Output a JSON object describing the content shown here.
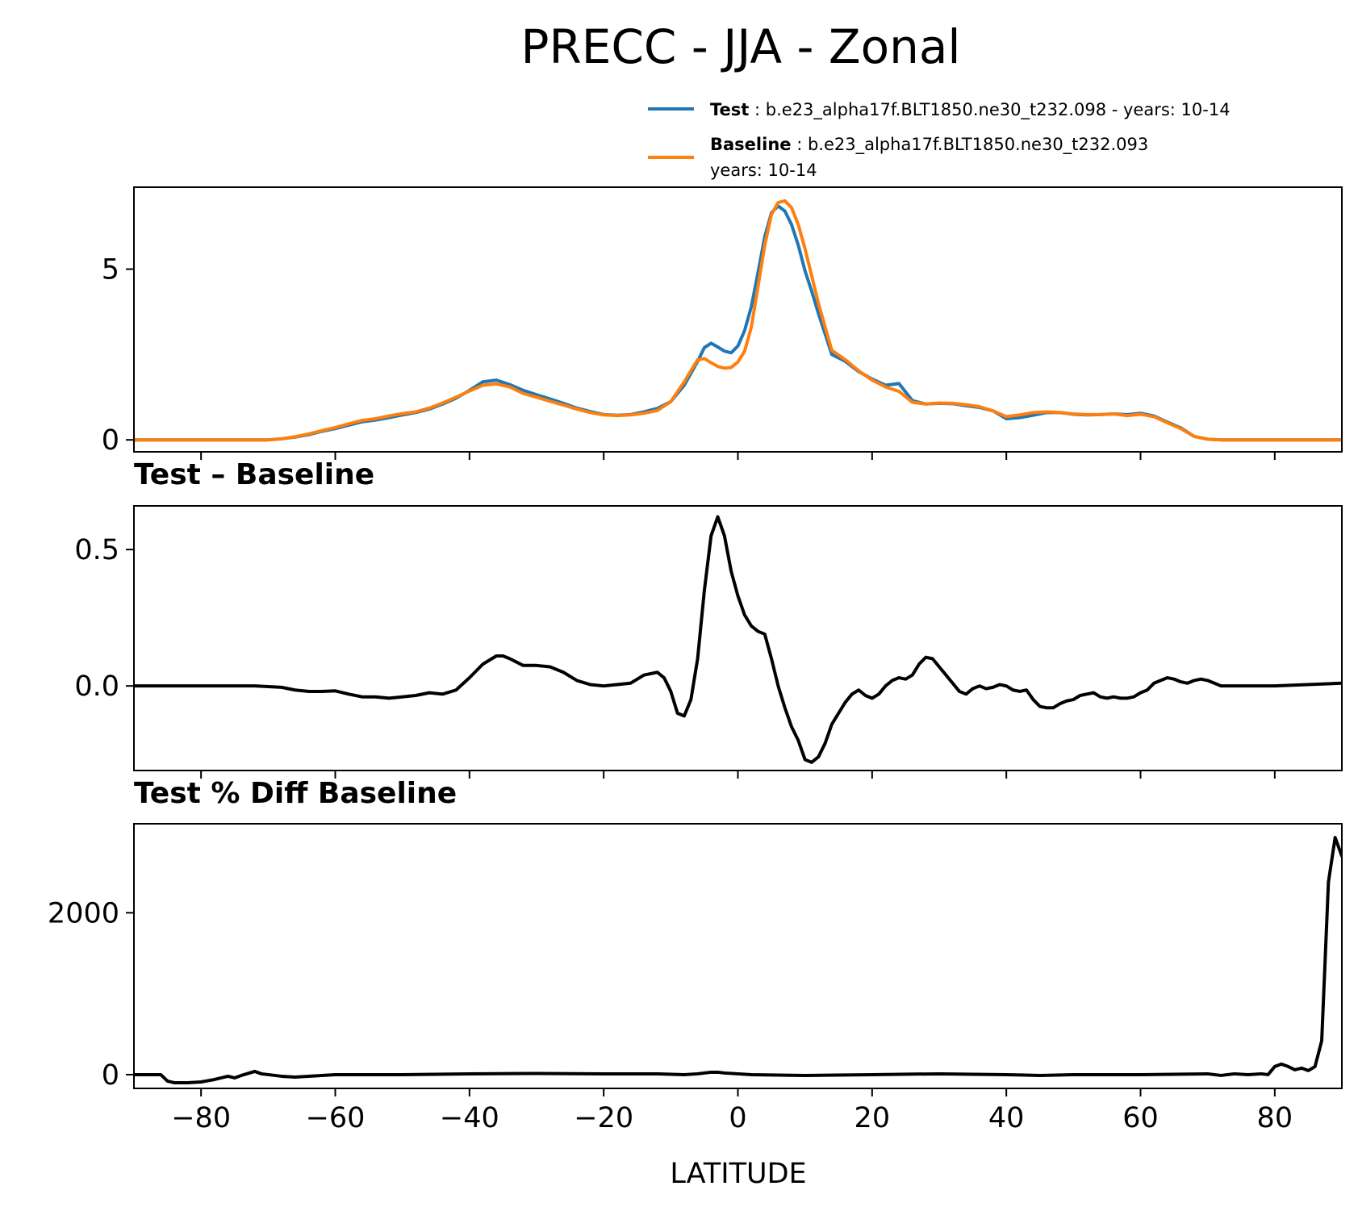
{
  "chart_data": {
    "type": "line",
    "title": "PRECC - JJA - Zonal",
    "xlabel": "LATITUDE",
    "xlim": [
      -90,
      90
    ],
    "x_ticks": [
      -80,
      -60,
      -40,
      -20,
      0,
      20,
      40,
      60,
      80
    ],
    "x_tick_labels": [
      "−80",
      "−60",
      "−40",
      "−20",
      "0",
      "20",
      "40",
      "60",
      "80"
    ],
    "legend": {
      "placement": "top-right, above panels",
      "entries": [
        {
          "name": "Test",
          "sep": " : ",
          "text": "b.e23_alpha17f.BLT1850.ne30_t232.098 - years: 10-14",
          "text2": "",
          "color": "#1f77b4"
        },
        {
          "name": "Baseline",
          "sep": " : ",
          "text": "b.e23_alpha17f.BLT1850.ne30_t232.093",
          "text2": "years: 10-14",
          "color": "#ff7f0e"
        }
      ]
    },
    "panels": [
      {
        "subtitle": "",
        "ylim": [
          -0.35,
          7.4
        ],
        "y_ticks": [
          0,
          5
        ],
        "y_tick_labels": [
          "0",
          "5"
        ],
        "x_tick_labels_visible": false,
        "series": [
          {
            "name": "Test",
            "color": "#1f77b4",
            "x": [
              -90,
              -70,
              -68,
              -66,
              -64,
              -62,
              -60,
              -58,
              -56,
              -54,
              -52,
              -50,
              -48,
              -46,
              -44,
              -42,
              -40,
              -38,
              -36,
              -34,
              -32,
              -30,
              -28,
              -26,
              -24,
              -22,
              -20,
              -18,
              -16,
              -14,
              -12,
              -10,
              -8,
              -6,
              -5,
              -4,
              -3,
              -2,
              -1,
              0,
              1,
              2,
              3,
              4,
              5,
              6,
              7,
              8,
              9,
              10,
              11,
              12,
              13,
              14,
              16,
              18,
              20,
              22,
              24,
              26,
              28,
              30,
              32,
              34,
              36,
              38,
              40,
              42,
              44,
              46,
              48,
              50,
              52,
              54,
              56,
              58,
              60,
              62,
              64,
              66,
              68,
              70,
              72,
              74,
              76,
              90
            ],
            "y": [
              0.0,
              0.0,
              0.03,
              0.08,
              0.15,
              0.25,
              0.33,
              0.43,
              0.53,
              0.58,
              0.65,
              0.73,
              0.8,
              0.9,
              1.05,
              1.22,
              1.45,
              1.7,
              1.75,
              1.62,
              1.45,
              1.32,
              1.2,
              1.07,
              0.93,
              0.83,
              0.74,
              0.72,
              0.74,
              0.82,
              0.92,
              1.12,
              1.6,
              2.3,
              2.7,
              2.83,
              2.72,
              2.6,
              2.55,
              2.75,
              3.2,
              3.9,
              4.9,
              5.95,
              6.65,
              6.85,
              6.7,
              6.3,
              5.7,
              4.95,
              4.35,
              3.7,
              3.1,
              2.5,
              2.3,
              2.0,
              1.78,
              1.6,
              1.65,
              1.15,
              1.05,
              1.07,
              1.06,
              1.0,
              0.95,
              0.85,
              0.62,
              0.65,
              0.72,
              0.8,
              0.8,
              0.75,
              0.73,
              0.74,
              0.76,
              0.74,
              0.78,
              0.7,
              0.52,
              0.35,
              0.1,
              0.02,
              0.0,
              0.0,
              0.0,
              0.0
            ]
          },
          {
            "name": "Baseline",
            "color": "#ff7f0e",
            "x": [
              -90,
              -70,
              -68,
              -66,
              -64,
              -62,
              -60,
              -58,
              -56,
              -54,
              -52,
              -50,
              -48,
              -46,
              -44,
              -42,
              -40,
              -38,
              -36,
              -34,
              -32,
              -30,
              -28,
              -26,
              -24,
              -22,
              -20,
              -18,
              -16,
              -14,
              -12,
              -10,
              -8,
              -6,
              -5,
              -4,
              -3,
              -2,
              -1,
              0,
              1,
              2,
              3,
              4,
              5,
              6,
              7,
              8,
              9,
              10,
              11,
              12,
              13,
              14,
              16,
              18,
              20,
              22,
              24,
              26,
              28,
              30,
              32,
              34,
              36,
              38,
              40,
              42,
              44,
              46,
              48,
              50,
              52,
              54,
              56,
              58,
              60,
              62,
              64,
              66,
              68,
              70,
              72,
              74,
              76,
              90
            ],
            "y": [
              0.0,
              0.0,
              0.03,
              0.09,
              0.17,
              0.27,
              0.36,
              0.47,
              0.57,
              0.62,
              0.7,
              0.77,
              0.82,
              0.93,
              1.08,
              1.25,
              1.43,
              1.6,
              1.64,
              1.55,
              1.36,
              1.25,
              1.13,
              1.02,
              0.9,
              0.8,
              0.73,
              0.71,
              0.73,
              0.78,
              0.86,
              1.12,
              1.7,
              2.35,
              2.38,
              2.26,
              2.15,
              2.1,
              2.12,
              2.28,
              2.6,
              3.3,
              4.5,
              5.7,
              6.6,
              6.95,
              7.0,
              6.8,
              6.3,
              5.6,
              4.8,
              4.0,
              3.3,
              2.62,
              2.35,
              2.02,
              1.75,
              1.55,
              1.42,
              1.1,
              1.05,
              1.08,
              1.07,
              1.03,
              0.97,
              0.85,
              0.68,
              0.73,
              0.8,
              0.82,
              0.8,
              0.76,
              0.74,
              0.74,
              0.76,
              0.71,
              0.75,
              0.68,
              0.5,
              0.33,
              0.1,
              0.02,
              0.0,
              0.0,
              0.0,
              0.0
            ]
          }
        ]
      },
      {
        "subtitle": "Test – Baseline",
        "ylim": [
          -0.31,
          0.66
        ],
        "y_ticks": [
          0.0,
          0.5
        ],
        "y_tick_labels": [
          "0.0",
          "0.5"
        ],
        "x_tick_labels_visible": false,
        "series": [
          {
            "name": "Test – Baseline",
            "color": "#000000",
            "x": [
              -90,
              -72,
              -68,
              -66,
              -64,
              -62,
              -60,
              -58,
              -56,
              -54,
              -52,
              -50,
              -48,
              -46,
              -44,
              -42,
              -40,
              -38,
              -36,
              -35,
              -34,
              -32,
              -30,
              -28,
              -26,
              -24,
              -22,
              -20,
              -18,
              -16,
              -14,
              -12,
              -11,
              -10,
              -9,
              -8,
              -7,
              -6,
              -5,
              -4,
              -3,
              -2,
              -1,
              0,
              1,
              2,
              3,
              4,
              5,
              6,
              7,
              8,
              9,
              10,
              11,
              12,
              13,
              14,
              15,
              16,
              17,
              18,
              19,
              20,
              21,
              22,
              23,
              24,
              25,
              26,
              27,
              28,
              29,
              30,
              31,
              32,
              33,
              34,
              35,
              36,
              37,
              38,
              39,
              40,
              41,
              42,
              43,
              44,
              45,
              46,
              47,
              48,
              49,
              50,
              51,
              52,
              53,
              54,
              55,
              56,
              57,
              58,
              59,
              60,
              61,
              62,
              63,
              64,
              65,
              66,
              67,
              68,
              69,
              70,
              71,
              72,
              74,
              76,
              80,
              90
            ],
            "y": [
              0.0,
              0.0,
              -0.005,
              -0.015,
              -0.02,
              -0.02,
              -0.018,
              -0.03,
              -0.04,
              -0.04,
              -0.045,
              -0.04,
              -0.035,
              -0.025,
              -0.03,
              -0.015,
              0.03,
              0.08,
              0.11,
              0.11,
              0.1,
              0.075,
              0.075,
              0.07,
              0.05,
              0.02,
              0.005,
              0.0,
              0.005,
              0.01,
              0.04,
              0.05,
              0.03,
              -0.02,
              -0.1,
              -0.11,
              -0.05,
              0.1,
              0.35,
              0.55,
              0.62,
              0.55,
              0.42,
              0.33,
              0.26,
              0.22,
              0.2,
              0.19,
              0.1,
              0.0,
              -0.08,
              -0.15,
              -0.2,
              -0.27,
              -0.28,
              -0.26,
              -0.21,
              -0.14,
              -0.1,
              -0.06,
              -0.03,
              -0.015,
              -0.035,
              -0.045,
              -0.03,
              0.0,
              0.02,
              0.03,
              0.025,
              0.04,
              0.08,
              0.105,
              0.1,
              0.07,
              0.04,
              0.01,
              -0.02,
              -0.03,
              -0.01,
              0.0,
              -0.01,
              -0.005,
              0.005,
              0.0,
              -0.015,
              -0.02,
              -0.015,
              -0.05,
              -0.075,
              -0.08,
              -0.08,
              -0.065,
              -0.055,
              -0.05,
              -0.035,
              -0.03,
              -0.025,
              -0.04,
              -0.045,
              -0.04,
              -0.045,
              -0.045,
              -0.04,
              -0.025,
              -0.015,
              0.01,
              0.02,
              0.03,
              0.025,
              0.015,
              0.01,
              0.02,
              0.025,
              0.02,
              0.01,
              0.0,
              0.0,
              0.0,
              0.0,
              0.01
            ]
          }
        ]
      },
      {
        "subtitle": "Test % Diff Baseline",
        "ylim": [
          -170,
          3100
        ],
        "y_ticks": [
          0,
          2000
        ],
        "y_tick_labels": [
          "0",
          "2000"
        ],
        "x_tick_labels_visible": true,
        "series": [
          {
            "name": "Test % Diff Baseline",
            "color": "#000000",
            "x": [
              -90,
              -86,
              -85,
              -84,
              -82,
              -80,
              -78,
              -76,
              -75,
              -74,
              -72,
              -71,
              -70,
              -68,
              -66,
              -64,
              -60,
              -50,
              -40,
              -30,
              -20,
              -12,
              -8,
              -6,
              -4,
              -3,
              -2,
              0,
              2,
              10,
              20,
              30,
              40,
              45,
              50,
              60,
              70,
              72,
              74,
              76,
              78,
              79,
              80,
              81,
              82,
              83,
              84,
              85,
              86,
              87,
              88,
              89,
              90
            ],
            "y": [
              0,
              0,
              -80,
              -100,
              -100,
              -90,
              -60,
              -20,
              -40,
              -10,
              40,
              10,
              0,
              -20,
              -30,
              -20,
              0,
              0,
              10,
              15,
              10,
              10,
              0,
              10,
              30,
              30,
              20,
              10,
              0,
              -10,
              0,
              10,
              0,
              -10,
              0,
              0,
              10,
              -10,
              10,
              0,
              10,
              0,
              100,
              130,
              100,
              60,
              80,
              50,
              100,
              420,
              2380,
              2930,
              2700
            ]
          }
        ]
      }
    ]
  }
}
